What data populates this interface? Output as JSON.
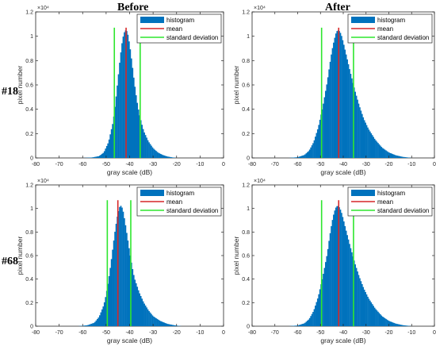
{
  "column_titles": [
    "Before",
    "After"
  ],
  "row_titles": [
    "#18",
    "#68"
  ],
  "chart_data": [
    {
      "type": "bar",
      "title": "",
      "panel_row": "#18",
      "panel_column": "Before",
      "xlabel": "gray scale (dB)",
      "ylabel": "pixel number",
      "xlim": [
        -80,
        0
      ],
      "ylim": [
        0,
        12000
      ],
      "y_exponent_label": "×10⁴",
      "x_ticks": [
        "-80",
        "-70",
        "-60",
        "-50",
        "-40",
        "-30",
        "-20",
        "-10",
        "0"
      ],
      "y_ticks": [
        "0",
        "0.2",
        "0.4",
        "0.6",
        "0.8",
        "1",
        "1.2"
      ],
      "legend": {
        "position": "top-right",
        "entries": [
          "histogram",
          "mean",
          "standard deviation"
        ]
      },
      "series": [
        {
          "name": "histogram",
          "color": "#0072BD",
          "x": [
            -60,
            -56,
            -53,
            -51,
            -49,
            -47,
            -46,
            -45,
            -44,
            -43,
            -42,
            -41,
            -40,
            -39,
            -38,
            -37,
            -36,
            -35,
            -34,
            -32,
            -30,
            -28,
            -26,
            -24,
            -22,
            -20
          ],
          "y": [
            0,
            40,
            150,
            450,
            1300,
            3000,
            4600,
            6400,
            8300,
            9800,
            10500,
            10400,
            9300,
            7800,
            6200,
            4800,
            3700,
            2900,
            2200,
            1350,
            800,
            450,
            250,
            120,
            50,
            0
          ]
        }
      ],
      "mean": -41.5,
      "std_lines": [
        -46.5,
        -35.5
      ],
      "colors": {
        "mean": "#D62728",
        "std": "#2EE62E"
      }
    },
    {
      "type": "bar",
      "title": "",
      "panel_row": "#18",
      "panel_column": "After",
      "xlabel": "gray scale (dB)",
      "ylabel": "pixel number",
      "xlim": [
        -80,
        0
      ],
      "ylim": [
        0,
        12000
      ],
      "y_exponent_label": "×10⁴",
      "x_ticks": [
        "-80",
        "-70",
        "-60",
        "-50",
        "-40",
        "-30",
        "-20",
        "-10",
        "0"
      ],
      "y_ticks": [
        "0",
        "0.2",
        "0.4",
        "0.6",
        "0.8",
        "1",
        "1.2"
      ],
      "legend": {
        "position": "top-right",
        "entries": [
          "histogram",
          "mean",
          "standard deviation"
        ]
      },
      "series": [
        {
          "name": "histogram",
          "color": "#0072BD",
          "x": [
            -64,
            -60,
            -57,
            -55,
            -53,
            -51,
            -49,
            -47,
            -46,
            -45,
            -44,
            -43,
            -42,
            -41,
            -40,
            -39,
            -37,
            -35,
            -33,
            -31,
            -29,
            -26,
            -23,
            -20,
            -17,
            -14,
            -10
          ],
          "y": [
            0,
            60,
            250,
            600,
            1300,
            2500,
            4200,
            6300,
            7600,
            8800,
            9700,
            10400,
            10500,
            10200,
            9500,
            8700,
            7100,
            5600,
            4300,
            3200,
            2400,
            1500,
            850,
            450,
            220,
            90,
            0
          ]
        }
      ],
      "mean": -42,
      "std_lines": [
        -49.5,
        -35.5
      ],
      "colors": {
        "mean": "#D62728",
        "std": "#2EE62E"
      }
    },
    {
      "type": "bar",
      "title": "",
      "panel_row": "#68",
      "panel_column": "Before",
      "xlabel": "gray scale (dB)",
      "ylabel": "pixel number",
      "xlim": [
        -80,
        0
      ],
      "ylim": [
        0,
        12000
      ],
      "y_exponent_label": "×10⁴",
      "x_ticks": [
        "-80",
        "-70",
        "-60",
        "-50",
        "-40",
        "-30",
        "-20",
        "-10",
        "0"
      ],
      "y_ticks": [
        "0",
        "0.2",
        "0.4",
        "0.6",
        "0.8",
        "1",
        "1.2"
      ],
      "legend": {
        "position": "top-right",
        "entries": [
          "histogram",
          "mean",
          "standard deviation"
        ]
      },
      "series": [
        {
          "name": "histogram",
          "color": "#0072BD",
          "x": [
            -62,
            -58,
            -55,
            -53,
            -51,
            -50,
            -49,
            -48,
            -47,
            -46,
            -45,
            -44,
            -43,
            -42,
            -41,
            -40,
            -39,
            -38,
            -36,
            -34,
            -32,
            -30,
            -27,
            -24,
            -21,
            -18
          ],
          "y": [
            0,
            80,
            300,
            800,
            1800,
            2700,
            3900,
            5300,
            6900,
            8400,
            9600,
            10300,
            10000,
            8900,
            7600,
            6300,
            5100,
            4100,
            2900,
            2000,
            1350,
            850,
            450,
            200,
            80,
            0
          ]
        }
      ],
      "mean": -45,
      "std_lines": [
        -49.5,
        -39.5
      ],
      "colors": {
        "mean": "#D62728",
        "std": "#2EE62E"
      }
    },
    {
      "type": "bar",
      "title": "",
      "panel_row": "#68",
      "panel_column": "After",
      "xlabel": "gray scale (dB)",
      "ylabel": "pixel number",
      "xlim": [
        -80,
        0
      ],
      "ylim": [
        0,
        12000
      ],
      "y_exponent_label": "×10⁴",
      "x_ticks": [
        "-80",
        "-70",
        "-60",
        "-50",
        "-40",
        "-30",
        "-20",
        "-10",
        "0"
      ],
      "y_ticks": [
        "0",
        "0.2",
        "0.4",
        "0.6",
        "0.8",
        "1",
        "1.2"
      ],
      "legend": {
        "position": "top-right",
        "entries": [
          "histogram",
          "mean",
          "standard deviation"
        ]
      },
      "series": [
        {
          "name": "histogram",
          "color": "#0072BD",
          "x": [
            -64,
            -60,
            -57,
            -55,
            -53,
            -51,
            -49,
            -47,
            -46,
            -45,
            -44,
            -43,
            -42,
            -41,
            -40,
            -39,
            -37,
            -35,
            -33,
            -31,
            -29,
            -26,
            -23,
            -20,
            -17,
            -14,
            -10
          ],
          "y": [
            0,
            60,
            250,
            600,
            1300,
            2500,
            4200,
            6200,
            7600,
            8800,
            9700,
            10200,
            10200,
            9800,
            9100,
            8300,
            6800,
            5400,
            4200,
            3200,
            2400,
            1500,
            850,
            450,
            220,
            90,
            0
          ]
        }
      ],
      "mean": -42,
      "std_lines": [
        -49.5,
        -35.5
      ],
      "colors": {
        "mean": "#D62728",
        "std": "#2EE62E"
      }
    }
  ]
}
